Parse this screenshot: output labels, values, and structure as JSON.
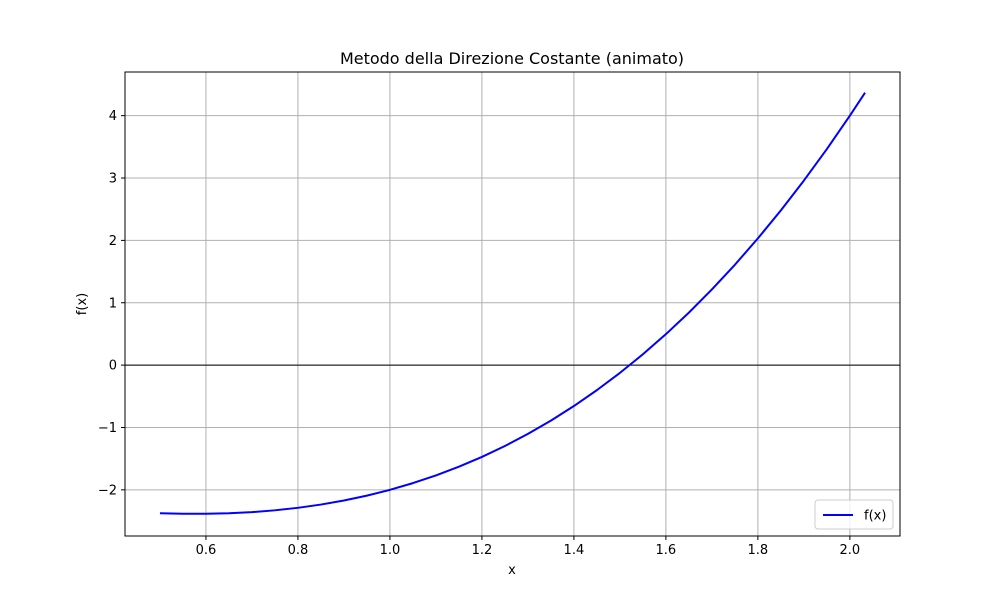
{
  "chart_data": {
    "type": "line",
    "title": "Metodo della Direzione Costante (animato)",
    "xlabel": "x",
    "ylabel": "f(x)",
    "xlim": [
      0.424,
      2.109
    ],
    "ylim": [
      -2.74,
      4.7
    ],
    "xticks": [
      0.6,
      0.8,
      1.0,
      1.2,
      1.4,
      1.6,
      1.8,
      2.0
    ],
    "xtick_labels": [
      "0.6",
      "0.8",
      "1.0",
      "1.2",
      "1.4",
      "1.6",
      "1.8",
      "2.0"
    ],
    "yticks": [
      -2,
      -1,
      0,
      1,
      2,
      3,
      4
    ],
    "ytick_labels": [
      "−2",
      "−1",
      "0",
      "1",
      "2",
      "3",
      "4"
    ],
    "grid": true,
    "reference_line": {
      "y": 0,
      "color": "#000000"
    },
    "legend": {
      "position": "lower-right",
      "entries": [
        "f(x)"
      ]
    },
    "series": [
      {
        "name": "f(x)",
        "color": "#0000ff",
        "x": [
          0.5,
          0.55,
          0.6,
          0.65,
          0.7,
          0.75,
          0.8,
          0.85,
          0.9,
          0.95,
          1.0,
          1.05,
          1.1,
          1.15,
          1.2,
          1.25,
          1.3,
          1.35,
          1.4,
          1.45,
          1.5,
          1.55,
          1.6,
          1.65,
          1.7,
          1.75,
          1.8,
          1.85,
          1.9,
          1.95,
          2.0,
          2.033
        ],
        "y": [
          -2.375,
          -2.384,
          -2.384,
          -2.375,
          -2.357,
          -2.328,
          -2.288,
          -2.236,
          -2.171,
          -2.093,
          -2.0,
          -1.892,
          -1.769,
          -1.629,
          -1.472,
          -1.297,
          -1.103,
          -0.89,
          -0.656,
          -0.401,
          -0.125,
          0.174,
          0.496,
          0.842,
          1.213,
          1.609,
          2.032,
          2.482,
          2.959,
          3.464,
          4.0,
          4.368
        ]
      }
    ]
  }
}
